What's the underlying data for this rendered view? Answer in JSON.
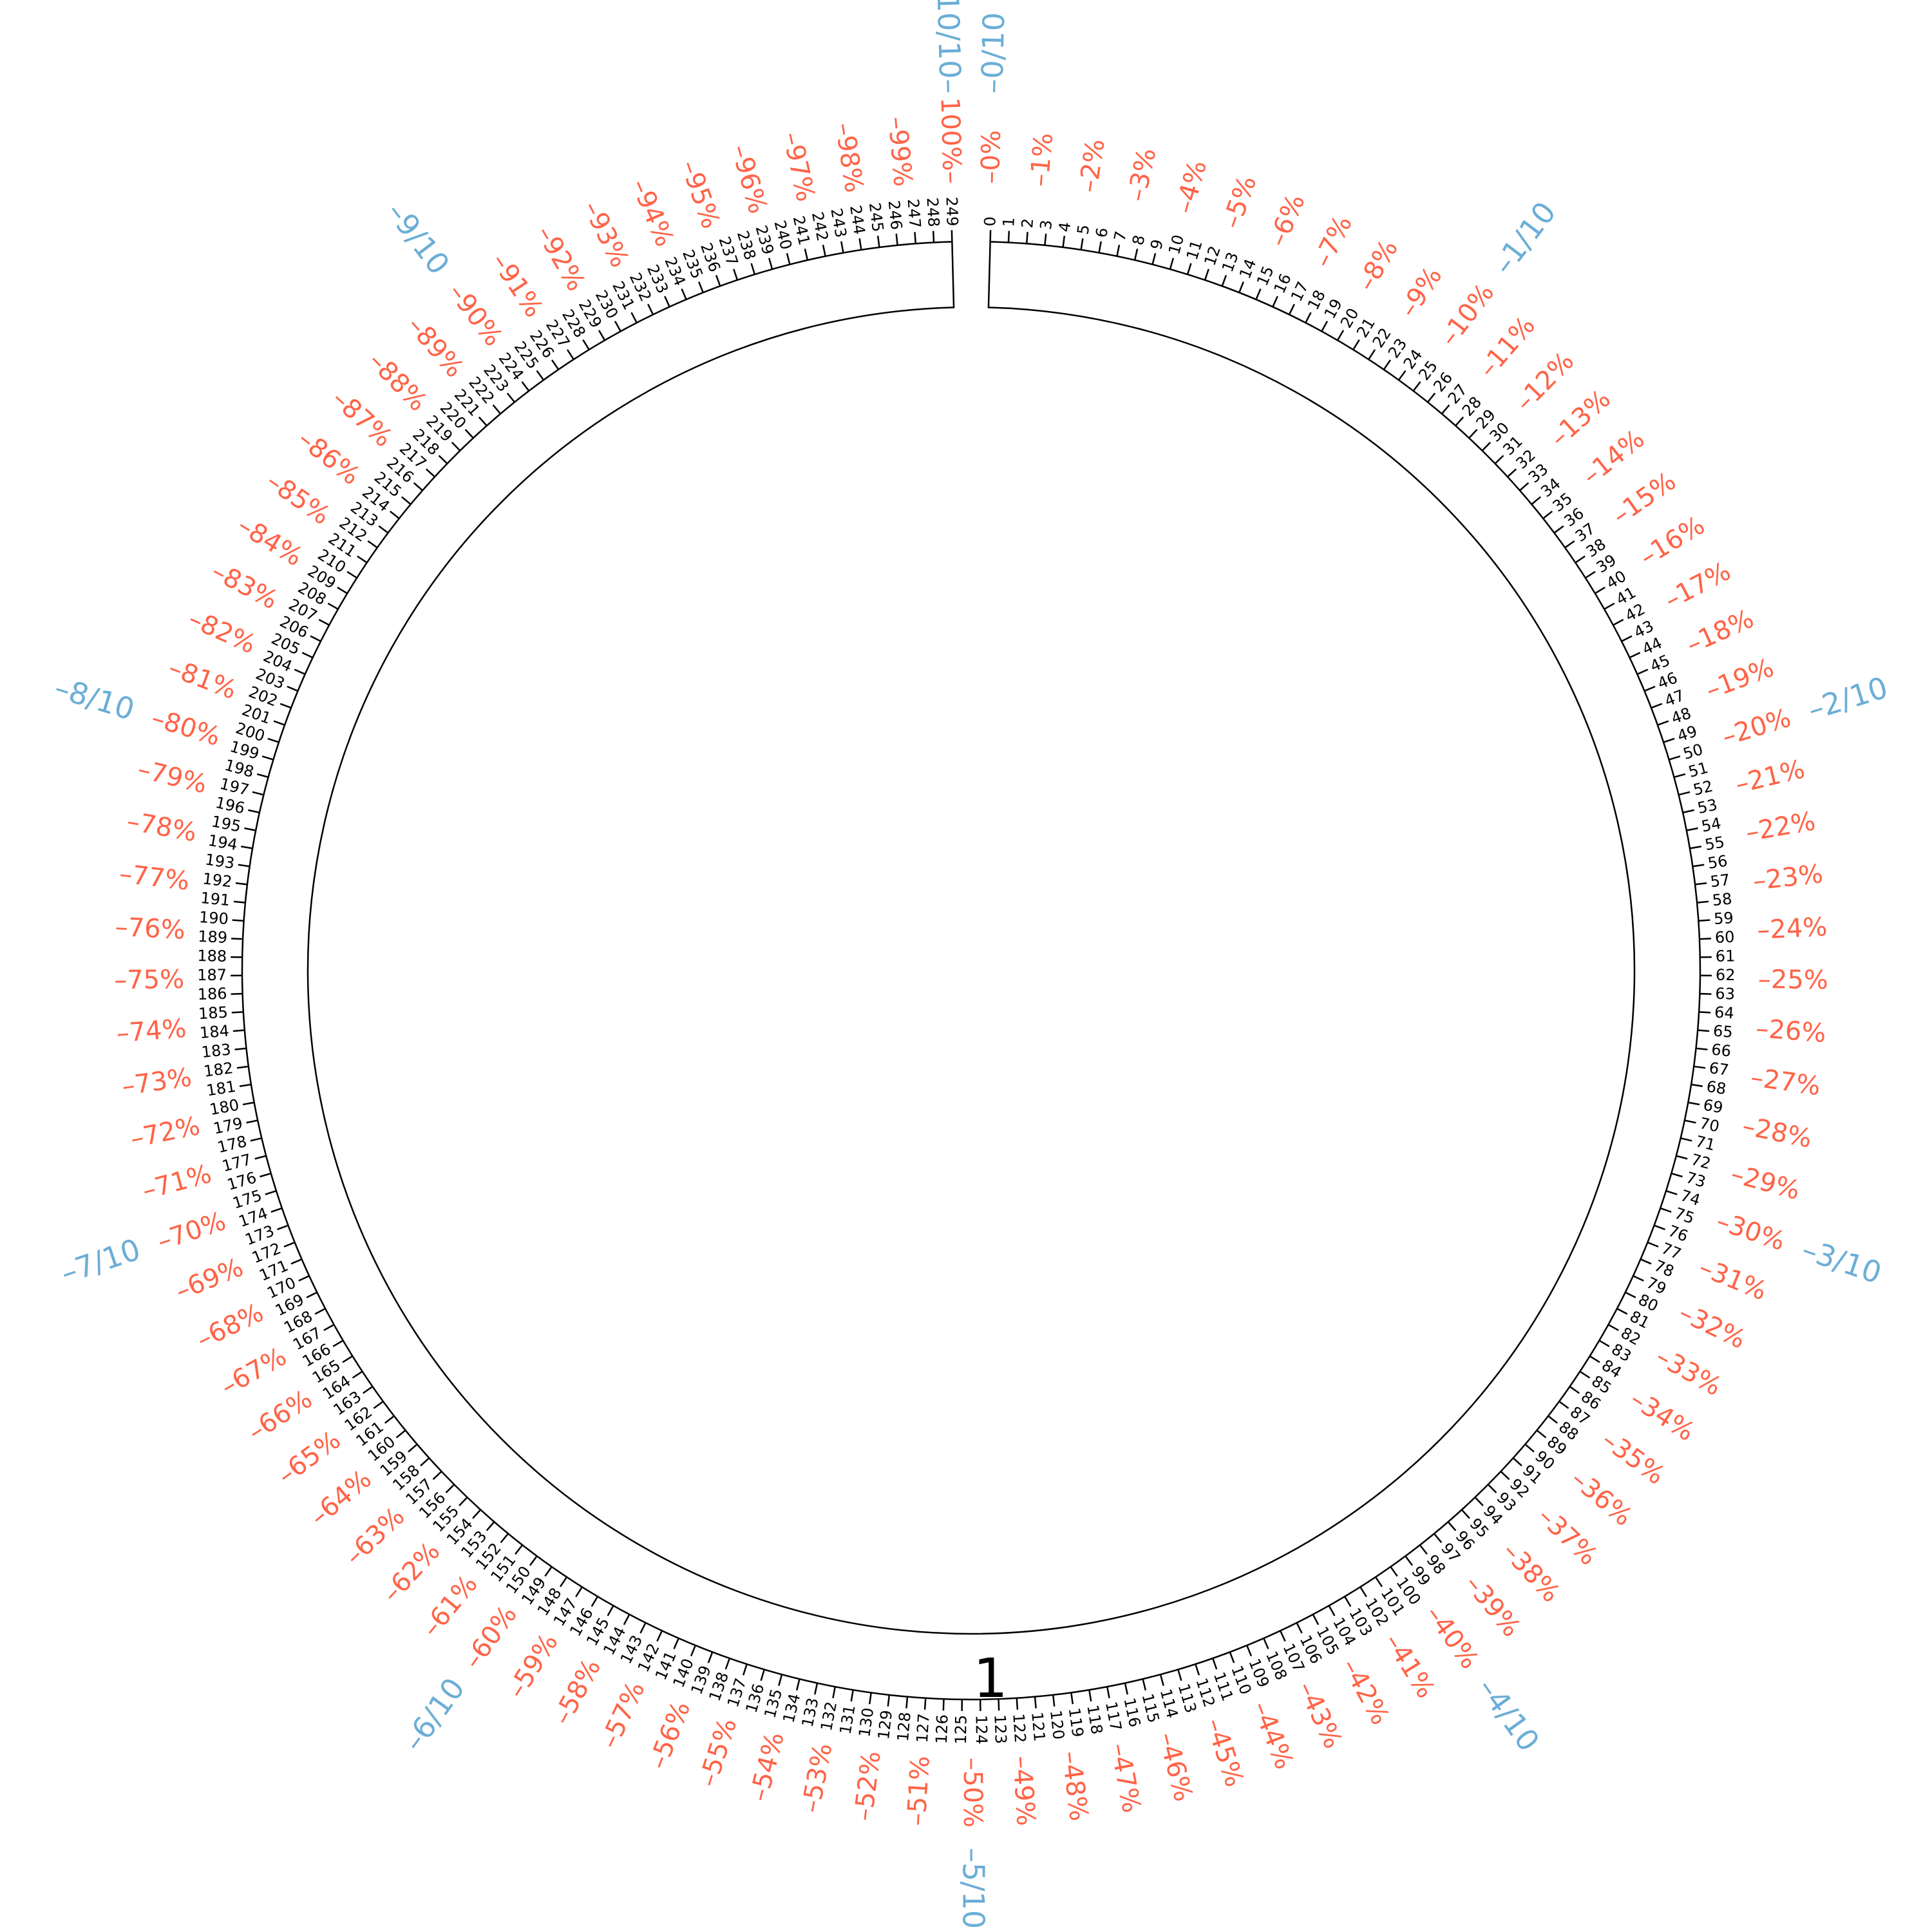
{
  "sequence": {
    "name": "1",
    "length": 250,
    "position_label_start": 0,
    "position_label_end": 249
  },
  "scales": {
    "percent": {
      "start": 0,
      "end": 100,
      "step": 1,
      "suffix": "%"
    },
    "fraction": {
      "numerators": [
        0,
        1,
        2,
        3,
        4,
        5,
        6,
        7,
        8,
        9,
        10
      ],
      "denominator": 10
    }
  },
  "colors": {
    "ring": "#000000",
    "position_labels": "#000000",
    "percent_labels": "#ff6347",
    "fraction_labels": "#6baed6",
    "background": "#ffffff"
  }
}
